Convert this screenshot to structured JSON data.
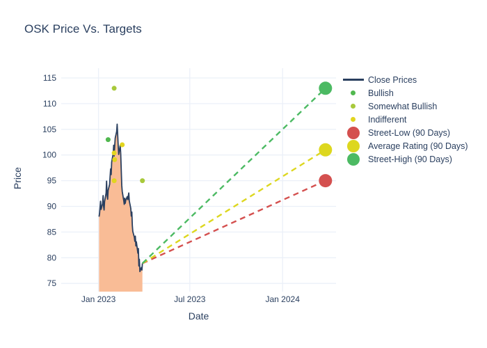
{
  "title": "OSK Price Vs. Targets",
  "legend": {
    "items": [
      {
        "label": "Close Prices",
        "swatch": "line",
        "color_key": "close_line"
      },
      {
        "label": "Bullish",
        "swatch": "dot_small",
        "color_key": "bullish"
      },
      {
        "label": "Somewhat Bullish",
        "swatch": "dot_small",
        "color_key": "somewhat_bullish"
      },
      {
        "label": "Indifferent",
        "swatch": "dot_small",
        "color_key": "indifferent"
      },
      {
        "label": "Street-Low (90 Days)",
        "swatch": "dot_big",
        "color_key": "street_low"
      },
      {
        "label": "Average Rating (90 Days)",
        "swatch": "dot_big",
        "color_key": "average_rating"
      },
      {
        "label": "Street-High (90 Days)",
        "swatch": "dot_big",
        "color_key": "street_high"
      }
    ]
  },
  "chart_data": {
    "type": "line",
    "title": "OSK Price Vs. Targets",
    "xlabel": "Date",
    "ylabel": "Price",
    "grid": true,
    "legend_position": "right",
    "x_range": [
      "2022-10-19",
      "2024-04-16"
    ],
    "y_range": [
      73.4,
      116.9
    ],
    "x_ticks": [
      {
        "date": "2023-01-01",
        "label": "Jan 2023"
      },
      {
        "date": "2023-07-01",
        "label": "Jul 2023"
      },
      {
        "date": "2024-01-01",
        "label": "Jan 2024"
      }
    ],
    "y_ticks": [
      75,
      80,
      85,
      90,
      95,
      100,
      105,
      110,
      115
    ],
    "colors": {
      "close_line": "#2a3f5f",
      "area_fill": "#f9bc96",
      "grid": "#ebf0f8",
      "bullish": "#51b84f",
      "somewhat_bullish": "#a8c93b",
      "indifferent": "#e2d51f",
      "street_low": "#d4504f",
      "average_rating": "#ddd71f",
      "street_high": "#4cba63"
    },
    "close_prices": {
      "dates": [
        "2023-01-02",
        "2023-01-03",
        "2023-01-04",
        "2023-01-05",
        "2023-01-06",
        "2023-01-09",
        "2023-01-10",
        "2023-01-11",
        "2023-01-12",
        "2023-01-13",
        "2023-01-16",
        "2023-01-17",
        "2023-01-18",
        "2023-01-19",
        "2023-01-20",
        "2023-01-23",
        "2023-01-24",
        "2023-01-25",
        "2023-01-26",
        "2023-01-27",
        "2023-01-30",
        "2023-01-31",
        "2023-02-01",
        "2023-02-02",
        "2023-02-03",
        "2023-02-06",
        "2023-02-07",
        "2023-02-08",
        "2023-02-09",
        "2023-02-10",
        "2023-02-13",
        "2023-02-14",
        "2023-02-15",
        "2023-02-16",
        "2023-02-17",
        "2023-02-20",
        "2023-02-21",
        "2023-02-22",
        "2023-02-23",
        "2023-02-24",
        "2023-02-27",
        "2023-02-28",
        "2023-03-01",
        "2023-03-02",
        "2023-03-03",
        "2023-03-06",
        "2023-03-07",
        "2023-03-08",
        "2023-03-09",
        "2023-03-10",
        "2023-03-13",
        "2023-03-14",
        "2023-03-15",
        "2023-03-16",
        "2023-03-17",
        "2023-03-20",
        "2023-03-21",
        "2023-03-22",
        "2023-03-23",
        "2023-03-24",
        "2023-03-27",
        "2023-03-28",
        "2023-03-29"
      ],
      "values": [
        88.0,
        88.6,
        89.8,
        91.0,
        89.4,
        90.5,
        92.1,
        90.0,
        89.3,
        90.9,
        92.6,
        94.9,
        92.1,
        91.4,
        93.1,
        94.3,
        95.9,
        97.3,
        96.2,
        98.6,
        100.3,
        101.9,
        99.8,
        101.6,
        103.3,
        104.6,
        106.0,
        103.8,
        101.8,
        100.1,
        101.9,
        100.3,
        97.4,
        94.1,
        92.9,
        91.1,
        90.4,
        91.6,
        90.6,
        91.2,
        91.9,
        91.3,
        92.0,
        92.6,
        91.1,
        89.6,
        88.1,
        88.9,
        86.3,
        85.1,
        84.0,
        83.2,
        84.2,
        82.3,
        83.1,
        80.9,
        81.8,
        78.4,
        79.7,
        77.3,
        78.1,
        77.6,
        78.9
      ]
    },
    "ratings": {
      "bullish": [
        {
          "date": "2023-01-20",
          "price": 103
        }
      ],
      "somewhat_bullish": [
        {
          "date": "2023-02-01",
          "price": 113
        },
        {
          "date": "2023-03-29",
          "price": 95
        }
      ],
      "indifferent": [
        {
          "date": "2023-02-01",
          "price": 100.4
        },
        {
          "date": "2023-02-02",
          "price": 99.1
        },
        {
          "date": "2023-02-17",
          "price": 102
        },
        {
          "date": "2023-02-01",
          "price": 95
        }
      ]
    },
    "projection_from": {
      "date": "2023-03-29",
      "price": 78.9
    },
    "targets": {
      "date": "2024-03-26",
      "street_low": 95,
      "average_rating": 101,
      "street_high": 113
    }
  }
}
